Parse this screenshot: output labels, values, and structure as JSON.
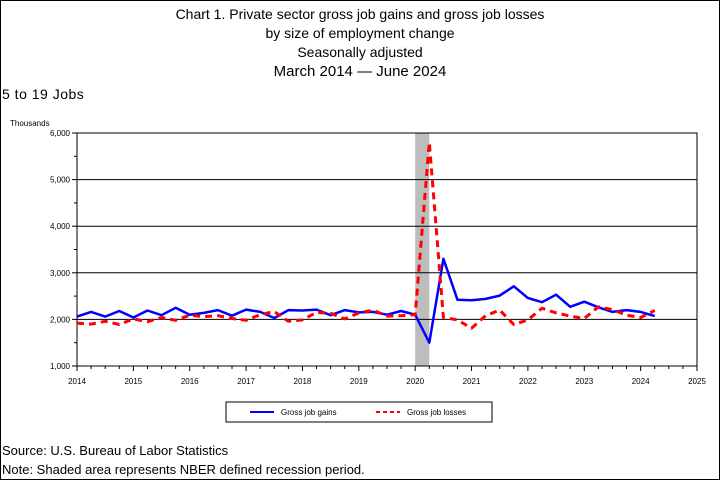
{
  "header": {
    "title_line1": "Chart 1. Private sector gross job gains and gross job losses",
    "title_line2": "by size of employment change",
    "title_line3": "Seasonally adjusted",
    "period_start": "March 2014",
    "period_end": "June 2024"
  },
  "size_label": "5 to 19 Jobs",
  "footer": {
    "source": "Source: U.S. Bureau of Labor Statistics",
    "note": "Note: Shaded area represents NBER defined recession period."
  },
  "colors": {
    "gains": "#0000ff",
    "losses": "#ff0000",
    "recession": "#bdbdbd"
  },
  "chart_data": {
    "type": "line",
    "ylabel": "Thousands",
    "ylim": [
      1000,
      6000
    ],
    "yticks": [
      "1,000",
      "2,000",
      "3,000",
      "4,000",
      "5,000",
      "6,000"
    ],
    "xlim": [
      2014,
      2025
    ],
    "xticks": [
      "2014",
      "2015",
      "2016",
      "2017",
      "2018",
      "2019",
      "2020",
      "2021",
      "2022",
      "2023",
      "2024",
      "2025"
    ],
    "grid": true,
    "legend": "bottom",
    "recession": [
      2020.0,
      2020.25
    ],
    "x": [
      2014.0,
      2014.25,
      2014.5,
      2014.75,
      2015.0,
      2015.25,
      2015.5,
      2015.75,
      2016.0,
      2016.25,
      2016.5,
      2016.75,
      2017.0,
      2017.25,
      2017.5,
      2017.75,
      2018.0,
      2018.25,
      2018.5,
      2018.75,
      2019.0,
      2019.25,
      2019.5,
      2019.75,
      2020.0,
      2020.25,
      2020.5,
      2020.75,
      2021.0,
      2021.25,
      2021.5,
      2021.75,
      2022.0,
      2022.25,
      2022.5,
      2022.75,
      2023.0,
      2023.25,
      2023.5,
      2023.75,
      2024.0,
      2024.25
    ],
    "series": [
      {
        "name": "Gross job gains",
        "style": "solid",
        "values": [
          2060,
          2160,
          2060,
          2180,
          2040,
          2190,
          2090,
          2250,
          2100,
          2140,
          2200,
          2080,
          2210,
          2160,
          2030,
          2200,
          2190,
          2210,
          2090,
          2200,
          2150,
          2160,
          2100,
          2180,
          2100,
          1500,
          3300,
          2420,
          2410,
          2440,
          2510,
          2710,
          2460,
          2370,
          2530,
          2270,
          2380,
          2260,
          2160,
          2200,
          2160,
          2070
        ]
      },
      {
        "name": "Gross job losses",
        "style": "dashed",
        "values": [
          1920,
          1900,
          1960,
          1890,
          2010,
          1950,
          2040,
          1980,
          2090,
          2060,
          2080,
          2020,
          1980,
          2100,
          2170,
          1960,
          1990,
          2150,
          2130,
          2010,
          2140,
          2200,
          2070,
          2080,
          2100,
          5800,
          2040,
          1990,
          1810,
          2080,
          2200,
          1890,
          1990,
          2240,
          2140,
          2070,
          2020,
          2270,
          2210,
          2090,
          2040,
          2190
        ]
      }
    ]
  }
}
